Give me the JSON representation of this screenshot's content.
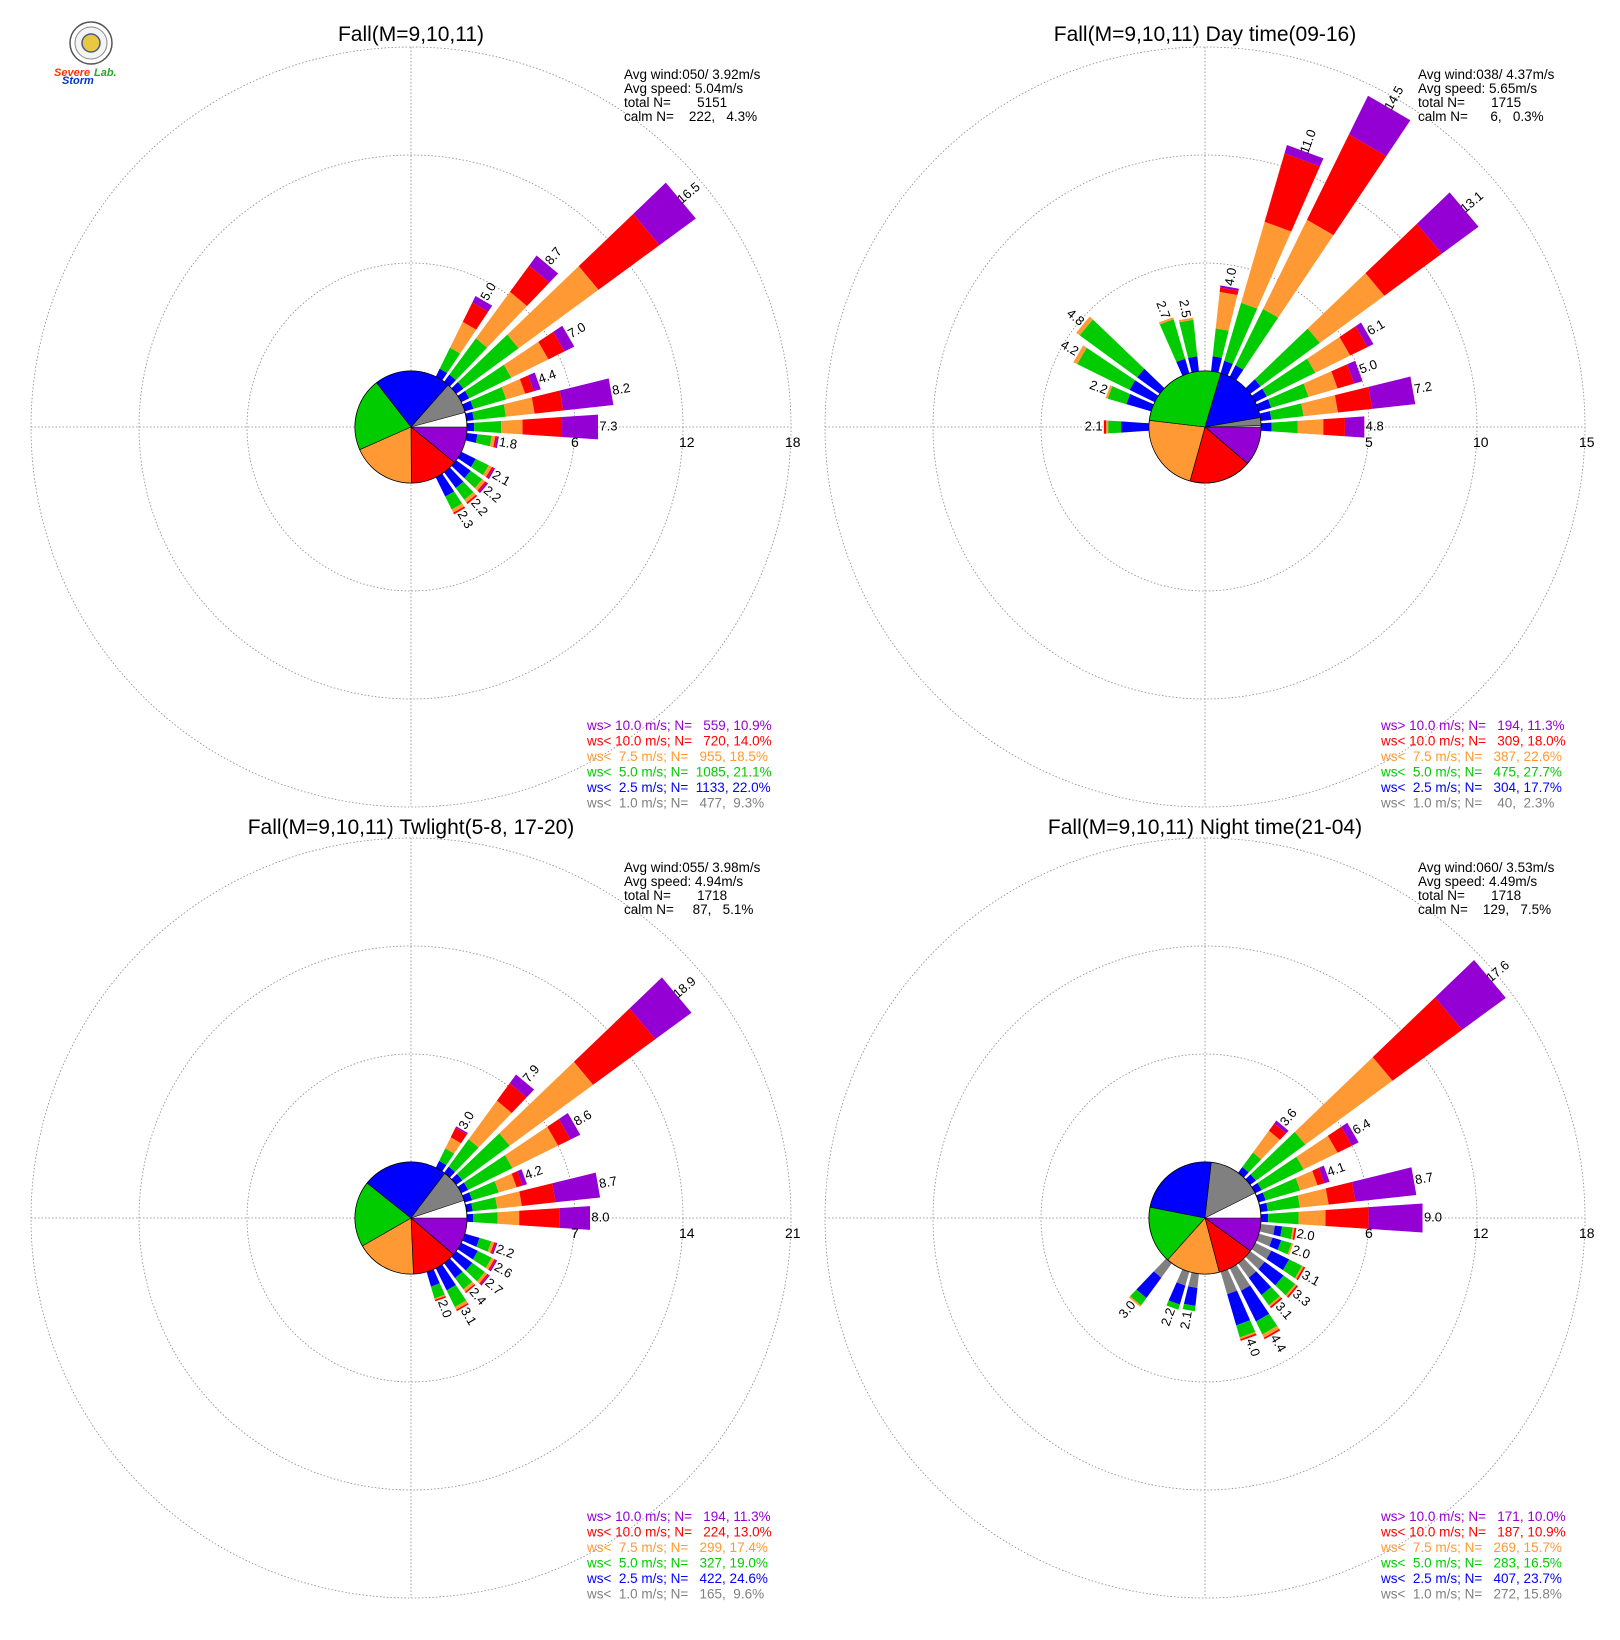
{
  "colors": {
    "gt10": "#9400d3",
    "lt10": "#ff0000",
    "lt7_5": "#ff9933",
    "lt5": "#00cc00",
    "lt2_5": "#0000ff",
    "lt1": "#808080"
  },
  "logo": {
    "text_1": "Severe",
    "text_2": "Storm",
    "text_3": "Lab.",
    "icon": "lab-seal-icon"
  },
  "panels": [
    {
      "title": "Fall(M=9,10,11)",
      "stats": [
        "Avg wind:050/ 3.92m/s",
        "Avg speed: 5.04m/s",
        "total N=       5151",
        "calm N=    222,   4.3%"
      ],
      "rings": [
        "6",
        "12",
        "18"
      ],
      "legend": [
        "ws> 10.0 m/s; N=   559, 10.9%",
        "ws< 10.0 m/s; N=   720, 14.0%",
        "ws<  7.5 m/s; N=   955, 18.5%",
        "ws<  5.0 m/s; N=  1085, 21.1%",
        "ws<  2.5 m/s; N=  1133, 22.0%",
        "ws<  1.0 m/s; N=   477,  9.3%"
      ],
      "bar_labels": [
        "16.5",
        "8.7",
        "5.0",
        "7.0",
        "4.4",
        "8.2",
        "7.3",
        "2.1",
        "2.2",
        "2.2",
        "2.3"
      ]
    },
    {
      "title": "Fall(M=9,10,11) Day time(09-16)",
      "stats": [
        "Avg wind:038/ 4.37m/s",
        "Avg speed: 5.65m/s",
        "total N=       1715",
        "calm N=      6,   0.3%"
      ],
      "rings": [
        "5",
        "10",
        "15"
      ],
      "legend": [
        "ws> 10.0 m/s; N=   194, 11.3%",
        "ws< 10.0 m/s; N=   309, 18.0%",
        "ws<  7.5 m/s; N=   387, 22.6%",
        "ws<  5.0 m/s; N=   475, 27.7%",
        "ws<  2.5 m/s; N=   304, 17.7%",
        "ws<  1.0 m/s; N=    40,  2.3%"
      ],
      "bar_labels": [
        "14.5",
        "11.0",
        "13.1",
        "4.0",
        "6.1",
        "5.0",
        "7.2",
        "4.8",
        "2.7",
        "2.5",
        "4.8",
        "4.2",
        "2.2",
        "2.1"
      ]
    },
    {
      "title": "Fall(M=9,10,11) Twlight(5-8, 17-20)",
      "stats": [
        "Avg wind:055/ 3.98m/s",
        "Avg speed: 4.94m/s",
        "total N=       1718",
        "calm N=     87,   5.1%"
      ],
      "rings": [
        "7",
        "14",
        "21"
      ],
      "legend": [
        "ws> 10.0 m/s; N=   194, 11.3%",
        "ws< 10.0 m/s; N=   224, 13.0%",
        "ws<  7.5 m/s; N=   299, 17.4%",
        "ws<  5.0 m/s; N=   327, 19.0%",
        "ws<  2.5 m/s; N=   422, 24.6%",
        "ws<  1.0 m/s; N=   165,  9.6%"
      ],
      "bar_labels": [
        "18.9",
        "7.9",
        "3.0",
        "8.6",
        "4.2",
        "8.7",
        "8.0",
        "2.2",
        "2.6",
        "2.7",
        "2.4",
        "3.1",
        "2.0"
      ]
    },
    {
      "title": "Fall(M=9,10,11) Night time(21-04)",
      "stats": [
        "Avg wind:060/ 3.53m/s",
        "Avg speed: 4.49m/s",
        "total N=       1718",
        "calm N=    129,   7.5%"
      ],
      "rings": [
        "6",
        "12",
        "18"
      ],
      "legend": [
        "ws> 10.0 m/s; N=   171, 10.0%",
        "ws< 10.0 m/s; N=   187, 10.9%",
        "ws<  7.5 m/s; N=   269, 15.7%",
        "ws<  5.0 m/s; N=   283, 16.5%",
        "ws<  2.5 m/s; N=   407, 23.7%",
        "ws<  1.0 m/s; N=   272, 15.8%"
      ],
      "bar_labels": [
        "17.6",
        "3.6",
        "6.4",
        "4.1",
        "8.7",
        "9.0",
        "2.0",
        "2.0",
        "3.1",
        "3.3",
        "3.1",
        "4.4",
        "4.0",
        "2.1",
        "2.2",
        "3.0"
      ]
    }
  ],
  "chart_data": [
    {
      "type": "wind-rose",
      "title": "Fall(M=9,10,11)",
      "radial_ticks": [
        6,
        12,
        18
      ],
      "radial_max": 18,
      "sector_width_deg": 10,
      "speed_classes": [
        "ws<  1.0 m/s",
        "ws<  2.5 m/s",
        "ws<  5.0 m/s",
        "ws<  7.5 m/s",
        "ws< 10.0 m/s",
        "ws> 10.0 m/s"
      ],
      "class_pct": [
        9.3,
        22.0,
        21.1,
        18.5,
        14.0,
        10.9
      ],
      "directions": [
        {
          "deg": 30,
          "total": 5.0,
          "parts": [
            0,
            0.5,
            1.3,
            1.6,
            1.2,
            0.4
          ]
        },
        {
          "deg": 40,
          "total": 8.7,
          "parts": [
            0,
            0.5,
            2.5,
            3.2,
            1.8,
            0.7
          ]
        },
        {
          "deg": 50,
          "total": 16.5,
          "parts": [
            0,
            0.5,
            3.8,
            5.5,
            4.2,
            2.5
          ]
        },
        {
          "deg": 60,
          "total": 7.0,
          "parts": [
            0,
            0.5,
            2.6,
            2.3,
            1.0,
            0.6
          ]
        },
        {
          "deg": 70,
          "total": 4.4,
          "parts": [
            0,
            0.5,
            1.9,
            1.1,
            0.5,
            0.4
          ]
        },
        {
          "deg": 80,
          "total": 8.2,
          "parts": [
            0,
            0.4,
            1.8,
            1.6,
            1.6,
            2.8
          ]
        },
        {
          "deg": 90,
          "total": 7.3,
          "parts": [
            0,
            0.4,
            1.5,
            1.2,
            2.2,
            2.0
          ]
        },
        {
          "deg": 100,
          "total": 1.8,
          "parts": [
            0,
            0.6,
            0.8,
            0.2,
            0.1,
            0.1
          ]
        },
        {
          "deg": 120,
          "total": 2.1,
          "parts": [
            0,
            0.9,
            0.8,
            0.2,
            0.1,
            0.1
          ]
        },
        {
          "deg": 130,
          "total": 2.2,
          "parts": [
            0,
            1.0,
            0.8,
            0.2,
            0.1,
            0.1
          ]
        },
        {
          "deg": 140,
          "total": 2.2,
          "parts": [
            0,
            1.1,
            0.8,
            0.2,
            0.1,
            0
          ]
        },
        {
          "deg": 150,
          "total": 2.3,
          "parts": [
            0,
            1.2,
            0.8,
            0.2,
            0.1,
            0
          ]
        }
      ]
    },
    {
      "type": "wind-rose",
      "title": "Fall(M=9,10,11) Day time(09-16)",
      "radial_ticks": [
        5,
        10,
        15
      ],
      "radial_max": 15,
      "sector_width_deg": 10,
      "speed_classes": [
        "ws<  1.0 m/s",
        "ws<  2.5 m/s",
        "ws<  5.0 m/s",
        "ws<  7.5 m/s",
        "ws< 10.0 m/s",
        "ws> 10.0 m/s"
      ],
      "class_pct": [
        2.3,
        17.7,
        27.7,
        22.6,
        18.0,
        11.3
      ],
      "directions": [
        {
          "deg": 340,
          "total": 2.7,
          "parts": [
            0,
            0.7,
            1.9,
            0.1,
            0,
            0
          ]
        },
        {
          "deg": 350,
          "total": 2.5,
          "parts": [
            0,
            0.7,
            1.7,
            0.1,
            0,
            0
          ]
        },
        {
          "deg": 310,
          "total": 4.8,
          "parts": [
            0,
            1.3,
            3.3,
            0.2,
            0,
            0
          ]
        },
        {
          "deg": 300,
          "total": 4.2,
          "parts": [
            0,
            1.3,
            2.7,
            0.2,
            0,
            0
          ]
        },
        {
          "deg": 290,
          "total": 2.2,
          "parts": [
            0,
            1.2,
            0.9,
            0.1,
            0,
            0
          ]
        },
        {
          "deg": 10,
          "total": 4.0,
          "parts": [
            0,
            0.7,
            1.3,
            1.7,
            0.2,
            0.1
          ]
        },
        {
          "deg": 20,
          "total": 11.0,
          "parts": [
            0,
            0.6,
            2.8,
            3.9,
            3.3,
            0.4
          ]
        },
        {
          "deg": 30,
          "total": 14.5,
          "parts": [
            0,
            0.6,
            2.9,
            4.6,
            4.4,
            2.0
          ]
        },
        {
          "deg": 50,
          "total": 13.1,
          "parts": [
            0,
            0.6,
            3.4,
            3.7,
            3.3,
            2.1
          ]
        },
        {
          "deg": 60,
          "total": 6.1,
          "parts": [
            0,
            0.6,
            2.5,
            1.8,
            0.9,
            0.3
          ]
        },
        {
          "deg": 70,
          "total": 5.0,
          "parts": [
            0,
            0.6,
            1.8,
            1.4,
            0.8,
            0.4
          ]
        },
        {
          "deg": 80,
          "total": 7.2,
          "parts": [
            0,
            0.5,
            1.5,
            1.6,
            1.6,
            2.0
          ]
        },
        {
          "deg": 90,
          "total": 4.8,
          "parts": [
            0,
            0.5,
            1.2,
            1.2,
            1.0,
            0.9
          ]
        },
        {
          "deg": 270,
          "total": 2.1,
          "parts": [
            0,
            1.3,
            0.6,
            0.1,
            0.1,
            0
          ]
        }
      ]
    },
    {
      "type": "wind-rose",
      "title": "Fall(M=9,10,11) Twlight(5-8, 17-20)",
      "radial_ticks": [
        7,
        14,
        21
      ],
      "radial_max": 21,
      "sector_width_deg": 10,
      "speed_classes": [
        "ws<  1.0 m/s",
        "ws<  2.5 m/s",
        "ws<  5.0 m/s",
        "ws<  7.5 m/s",
        "ws< 10.0 m/s",
        "ws> 10.0 m/s"
      ],
      "class_pct": [
        9.6,
        24.6,
        19.0,
        17.4,
        13.0,
        11.3
      ],
      "directions": [
        {
          "deg": 30,
          "total": 3.0,
          "parts": [
            0,
            0.5,
            0.9,
            0.8,
            0.7,
            0.1
          ]
        },
        {
          "deg": 40,
          "total": 7.9,
          "parts": [
            0,
            0.5,
            2.2,
            3.1,
            1.4,
            0.7
          ]
        },
        {
          "deg": 50,
          "total": 18.9,
          "parts": [
            0,
            0.5,
            3.8,
            6.7,
            5.0,
            2.9
          ]
        },
        {
          "deg": 60,
          "total": 8.6,
          "parts": [
            0,
            0.5,
            3.2,
            3.3,
            0.9,
            0.7
          ]
        },
        {
          "deg": 70,
          "total": 4.2,
          "parts": [
            0,
            0.5,
            1.8,
            1.2,
            0.4,
            0.3
          ]
        },
        {
          "deg": 80,
          "total": 8.7,
          "parts": [
            0,
            0.4,
            1.6,
            1.6,
            2.2,
            2.9
          ]
        },
        {
          "deg": 90,
          "total": 8.0,
          "parts": [
            0,
            0.4,
            1.6,
            1.4,
            2.6,
            2.0
          ]
        },
        {
          "deg": 110,
          "total": 2.2,
          "parts": [
            0,
            1.0,
            0.8,
            0.2,
            0.1,
            0.1
          ]
        },
        {
          "deg": 120,
          "total": 2.6,
          "parts": [
            0,
            1.2,
            1.0,
            0.2,
            0.1,
            0.1
          ]
        },
        {
          "deg": 130,
          "total": 2.7,
          "parts": [
            0,
            1.3,
            1.0,
            0.2,
            0.1,
            0.1
          ]
        },
        {
          "deg": 140,
          "total": 2.4,
          "parts": [
            0,
            1.2,
            0.9,
            0.2,
            0.1,
            0
          ]
        },
        {
          "deg": 150,
          "total": 3.1,
          "parts": [
            0,
            1.6,
            1.2,
            0.2,
            0.1,
            0
          ]
        },
        {
          "deg": 160,
          "total": 2.0,
          "parts": [
            0,
            1.0,
            0.8,
            0.1,
            0.1,
            0
          ]
        }
      ]
    },
    {
      "type": "wind-rose",
      "title": "Fall(M=9,10,11) Night time(21-04)",
      "radial_ticks": [
        6,
        12,
        18
      ],
      "radial_max": 18,
      "sector_width_deg": 10,
      "speed_classes": [
        "ws<  1.0 m/s",
        "ws<  2.5 m/s",
        "ws<  5.0 m/s",
        "ws<  7.5 m/s",
        "ws< 10.0 m/s",
        "ws> 10.0 m/s"
      ],
      "class_pct": [
        15.8,
        23.7,
        16.5,
        15.7,
        10.9,
        10.0
      ],
      "directions": [
        {
          "deg": 40,
          "total": 3.6,
          "parts": [
            0,
            0.4,
            1.0,
            1.5,
            0.5,
            0.2
          ]
        },
        {
          "deg": 50,
          "total": 17.6,
          "parts": [
            0,
            0.4,
            3.4,
            6.0,
            4.8,
            3.0
          ]
        },
        {
          "deg": 60,
          "total": 6.4,
          "parts": [
            0,
            0.4,
            2.6,
            2.1,
            0.9,
            0.4
          ]
        },
        {
          "deg": 70,
          "total": 4.1,
          "parts": [
            0,
            0.4,
            2.0,
            1.0,
            0.4,
            0.3
          ]
        },
        {
          "deg": 80,
          "total": 8.7,
          "parts": [
            0,
            0.4,
            1.8,
            1.6,
            1.5,
            3.4
          ]
        },
        {
          "deg": 90,
          "total": 9.0,
          "parts": [
            0,
            0.4,
            1.7,
            1.5,
            2.4,
            3.0
          ]
        },
        {
          "deg": 100,
          "total": 2.0,
          "parts": [
            0.8,
            0.4,
            0.6,
            0.1,
            0.1,
            0
          ]
        },
        {
          "deg": 110,
          "total": 2.0,
          "parts": [
            0.8,
            0.5,
            0.6,
            0.1,
            0,
            0
          ]
        },
        {
          "deg": 120,
          "total": 3.1,
          "parts": [
            1.0,
            1.1,
            0.8,
            0.1,
            0.1,
            0
          ]
        },
        {
          "deg": 130,
          "total": 3.3,
          "parts": [
            1.0,
            1.3,
            0.8,
            0.1,
            0.1,
            0
          ]
        },
        {
          "deg": 140,
          "total": 3.1,
          "parts": [
            1.0,
            1.2,
            0.7,
            0.1,
            0.1,
            0
          ]
        },
        {
          "deg": 150,
          "total": 4.4,
          "parts": [
            1.4,
            1.9,
            0.8,
            0.2,
            0.1,
            0
          ]
        },
        {
          "deg": 160,
          "total": 4.0,
          "parts": [
            1.3,
            1.8,
            0.7,
            0.1,
            0.1,
            0
          ]
        },
        {
          "deg": 190,
          "total": 2.1,
          "parts": [
            0.8,
            1.0,
            0.3,
            0,
            0,
            0
          ]
        },
        {
          "deg": 200,
          "total": 2.2,
          "parts": [
            0.8,
            1.1,
            0.3,
            0,
            0,
            0
          ]
        },
        {
          "deg": 220,
          "total": 3.0,
          "parts": [
            1.0,
            1.4,
            0.5,
            0.1,
            0,
            0
          ]
        }
      ]
    }
  ]
}
